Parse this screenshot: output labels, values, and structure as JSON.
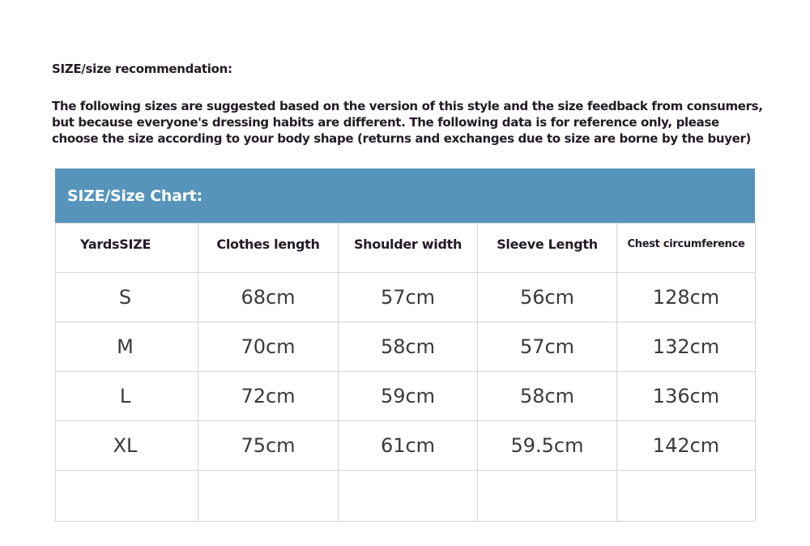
{
  "title": "SIZE/size recommendation:",
  "intro_lines": [
    "The following sizes are suggested based on the version of this style and the size feedback from consumers,",
    "but because everyone's dressing habits are different. The following data is for reference only, please",
    "choose the size according to your body shape (returns and exchanges due to size are borne by the buyer)"
  ],
  "colors": {
    "header_bar": "#5694bb",
    "text": "#231b26"
  },
  "size_chart": {
    "heading": "SIZE/Size Chart:",
    "columns": [
      "YardsSIZE",
      "Clothes length",
      "Shoulder width",
      "Sleeve Length",
      "Chest circumference"
    ],
    "rows": [
      [
        "S",
        "68cm",
        "57cm",
        "56cm",
        "128cm"
      ],
      [
        "M",
        "70cm",
        "58cm",
        "57cm",
        "132cm"
      ],
      [
        "L",
        "72cm",
        "59cm",
        "58cm",
        "136cm"
      ],
      [
        "XL",
        "75cm",
        "61cm",
        "59.5cm",
        "142cm"
      ],
      [
        "",
        "",
        "",
        "",
        ""
      ]
    ]
  }
}
